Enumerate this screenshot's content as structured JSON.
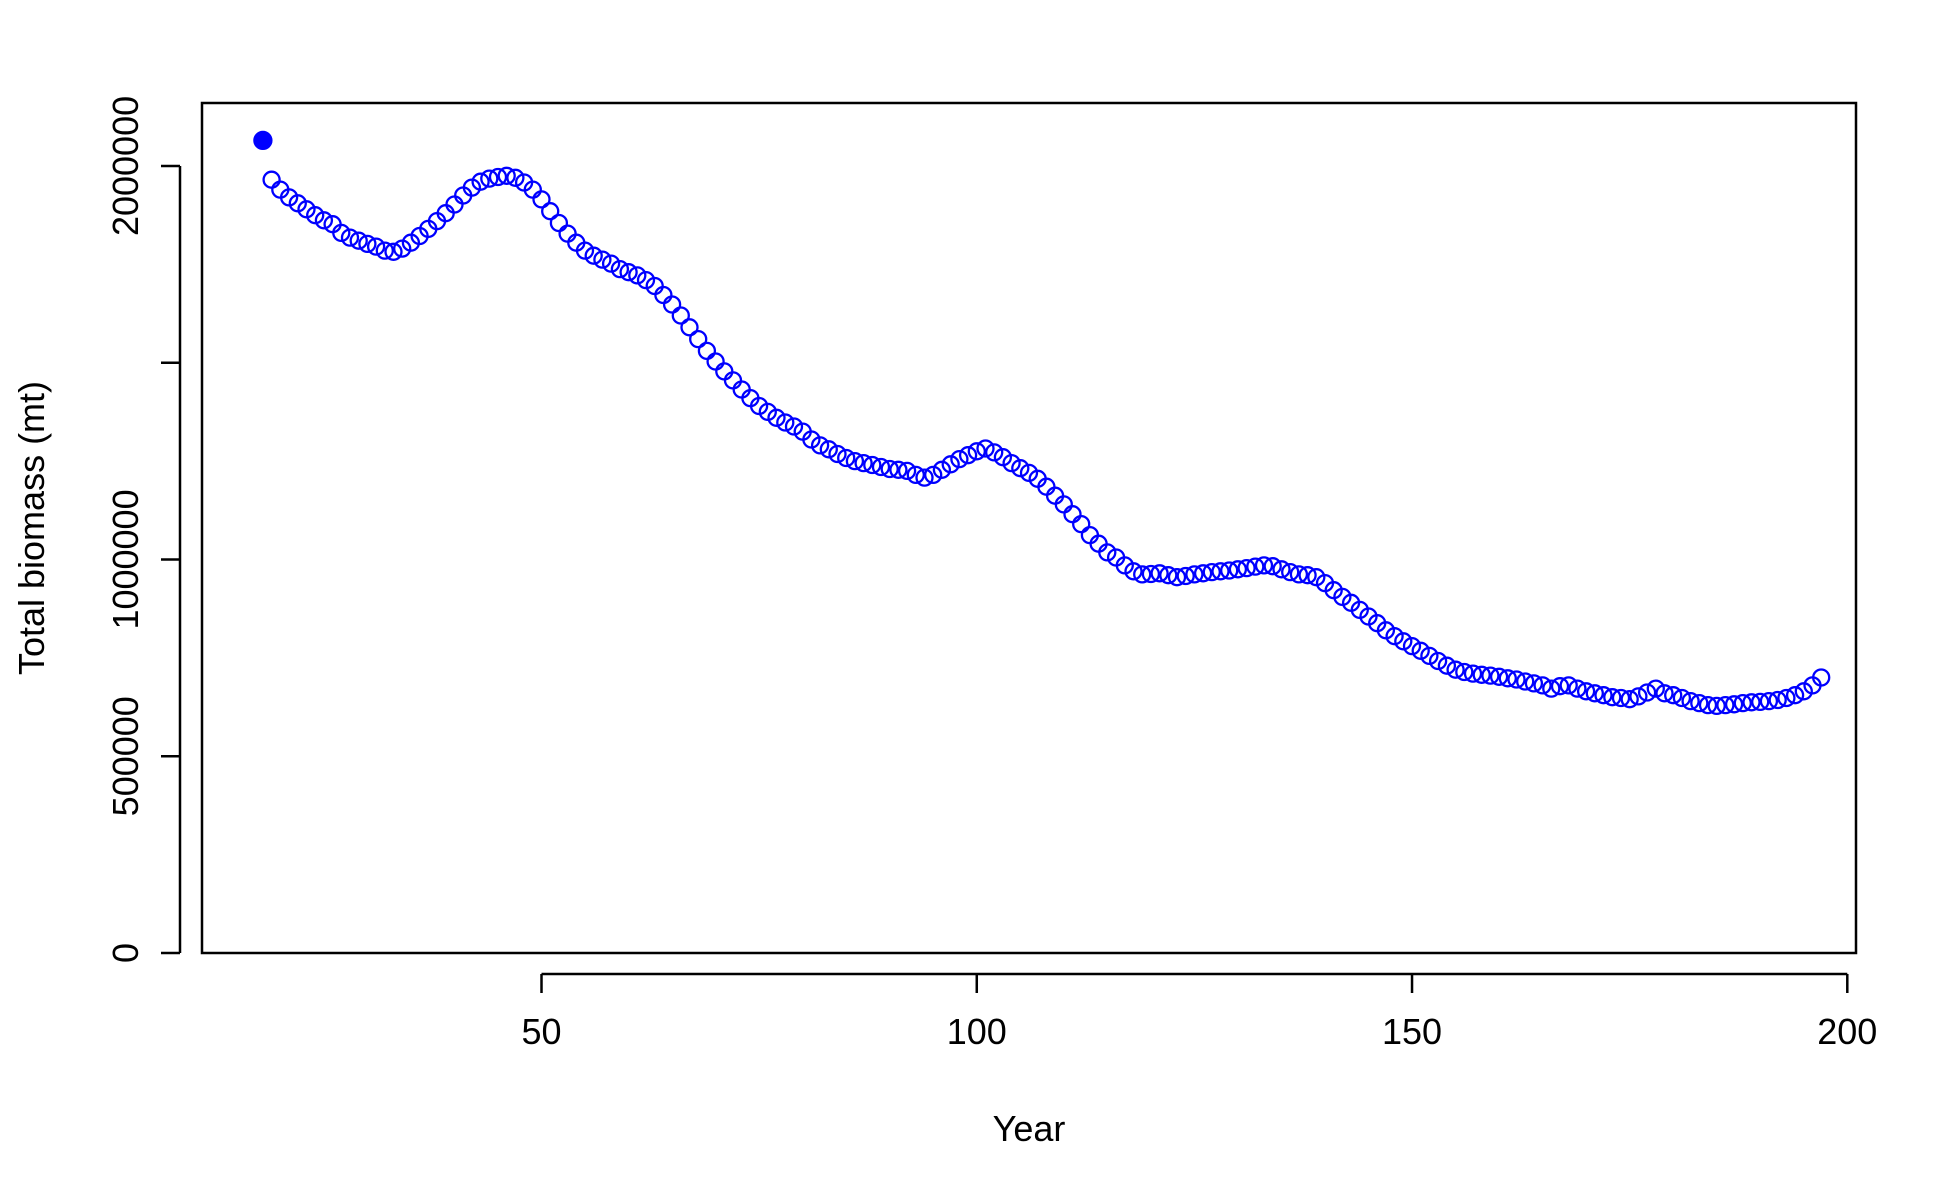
{
  "chart_data": {
    "type": "scatter",
    "title": "",
    "xlabel": "Year",
    "ylabel": "Total biomass (mt)",
    "xlim": [
      11,
      201
    ],
    "ylim": [
      0,
      2160000
    ],
    "xticks": [
      50,
      100,
      150,
      200
    ],
    "yticks": [
      0,
      500000,
      1000000,
      1500000,
      2000000
    ],
    "ytick_labels": [
      "0",
      "500000",
      "1000000",
      "",
      "2000000"
    ],
    "grid": false,
    "legend": "none",
    "series": [
      {
        "marker": "filled-circle",
        "color": "#0000ff",
        "points": [
          [
            18,
            2065000
          ]
        ]
      },
      {
        "marker": "open-circle",
        "color": "#0000ff",
        "points": [
          [
            19,
            1965000
          ],
          [
            20,
            1940000
          ],
          [
            21,
            1920000
          ],
          [
            22,
            1905000
          ],
          [
            23,
            1890000
          ],
          [
            24,
            1875000
          ],
          [
            25,
            1862000
          ],
          [
            26,
            1852000
          ],
          [
            27,
            1830000
          ],
          [
            28,
            1818000
          ],
          [
            29,
            1810000
          ],
          [
            30,
            1802000
          ],
          [
            31,
            1795000
          ],
          [
            32,
            1785000
          ],
          [
            33,
            1782000
          ],
          [
            34,
            1790000
          ],
          [
            35,
            1805000
          ],
          [
            36,
            1822000
          ],
          [
            37,
            1840000
          ],
          [
            38,
            1860000
          ],
          [
            39,
            1880000
          ],
          [
            40,
            1902000
          ],
          [
            41,
            1925000
          ],
          [
            42,
            1945000
          ],
          [
            43,
            1960000
          ],
          [
            44,
            1968000
          ],
          [
            45,
            1972000
          ],
          [
            46,
            1975000
          ],
          [
            47,
            1970000
          ],
          [
            48,
            1958000
          ],
          [
            49,
            1940000
          ],
          [
            50,
            1915000
          ],
          [
            51,
            1885000
          ],
          [
            52,
            1855000
          ],
          [
            53,
            1828000
          ],
          [
            54,
            1805000
          ],
          [
            55,
            1785000
          ],
          [
            56,
            1772000
          ],
          [
            57,
            1762000
          ],
          [
            58,
            1752000
          ],
          [
            59,
            1738000
          ],
          [
            60,
            1730000
          ],
          [
            61,
            1722000
          ],
          [
            62,
            1710000
          ],
          [
            63,
            1695000
          ],
          [
            64,
            1672000
          ],
          [
            65,
            1648000
          ],
          [
            66,
            1620000
          ],
          [
            67,
            1590000
          ],
          [
            68,
            1560000
          ],
          [
            69,
            1530000
          ],
          [
            70,
            1503000
          ],
          [
            71,
            1478000
          ],
          [
            72,
            1455000
          ],
          [
            73,
            1432000
          ],
          [
            74,
            1410000
          ],
          [
            75,
            1390000
          ],
          [
            76,
            1375000
          ],
          [
            77,
            1360000
          ],
          [
            78,
            1348000
          ],
          [
            79,
            1338000
          ],
          [
            80,
            1325000
          ],
          [
            81,
            1305000
          ],
          [
            82,
            1290000
          ],
          [
            83,
            1280000
          ],
          [
            84,
            1268000
          ],
          [
            85,
            1258000
          ],
          [
            86,
            1250000
          ],
          [
            87,
            1245000
          ],
          [
            88,
            1240000
          ],
          [
            89,
            1235000
          ],
          [
            90,
            1230000
          ],
          [
            91,
            1228000
          ],
          [
            92,
            1225000
          ],
          [
            93,
            1215000
          ],
          [
            94,
            1208000
          ],
          [
            95,
            1215000
          ],
          [
            96,
            1228000
          ],
          [
            97,
            1242000
          ],
          [
            98,
            1255000
          ],
          [
            99,
            1265000
          ],
          [
            100,
            1275000
          ],
          [
            101,
            1282000
          ],
          [
            102,
            1272000
          ],
          [
            103,
            1260000
          ],
          [
            104,
            1245000
          ],
          [
            105,
            1232000
          ],
          [
            106,
            1220000
          ],
          [
            107,
            1205000
          ],
          [
            108,
            1185000
          ],
          [
            109,
            1162000
          ],
          [
            110,
            1140000
          ],
          [
            111,
            1115000
          ],
          [
            112,
            1090000
          ],
          [
            113,
            1062000
          ],
          [
            114,
            1040000
          ],
          [
            115,
            1018000
          ],
          [
            116,
            1005000
          ],
          [
            117,
            985000
          ],
          [
            118,
            970000
          ],
          [
            119,
            962000
          ],
          [
            120,
            963000
          ],
          [
            121,
            965000
          ],
          [
            122,
            960000
          ],
          [
            123,
            955000
          ],
          [
            124,
            958000
          ],
          [
            125,
            962000
          ],
          [
            126,
            965000
          ],
          [
            127,
            968000
          ],
          [
            128,
            970000
          ],
          [
            129,
            972000
          ],
          [
            130,
            975000
          ],
          [
            131,
            978000
          ],
          [
            132,
            982000
          ],
          [
            133,
            985000
          ],
          [
            134,
            983000
          ],
          [
            135,
            975000
          ],
          [
            136,
            968000
          ],
          [
            137,
            962000
          ],
          [
            138,
            960000
          ],
          [
            139,
            955000
          ],
          [
            140,
            940000
          ],
          [
            141,
            922000
          ],
          [
            142,
            905000
          ],
          [
            143,
            890000
          ],
          [
            144,
            872000
          ],
          [
            145,
            855000
          ],
          [
            146,
            838000
          ],
          [
            147,
            820000
          ],
          [
            148,
            805000
          ],
          [
            149,
            792000
          ],
          [
            150,
            780000
          ],
          [
            151,
            768000
          ],
          [
            152,
            755000
          ],
          [
            153,
            742000
          ],
          [
            154,
            730000
          ],
          [
            155,
            720000
          ],
          [
            156,
            714000
          ],
          [
            157,
            710000
          ],
          [
            158,
            707000
          ],
          [
            159,
            705000
          ],
          [
            160,
            702000
          ],
          [
            161,
            698000
          ],
          [
            162,
            695000
          ],
          [
            163,
            690000
          ],
          [
            164,
            685000
          ],
          [
            165,
            680000
          ],
          [
            166,
            672000
          ],
          [
            167,
            678000
          ],
          [
            168,
            680000
          ],
          [
            169,
            672000
          ],
          [
            170,
            665000
          ],
          [
            171,
            660000
          ],
          [
            172,
            655000
          ],
          [
            173,
            650000
          ],
          [
            174,
            648000
          ],
          [
            175,
            645000
          ],
          [
            176,
            652000
          ],
          [
            177,
            662000
          ],
          [
            178,
            672000
          ],
          [
            179,
            660000
          ],
          [
            180,
            655000
          ],
          [
            181,
            648000
          ],
          [
            182,
            640000
          ],
          [
            183,
            635000
          ],
          [
            184,
            630000
          ],
          [
            185,
            628000
          ],
          [
            186,
            630000
          ],
          [
            187,
            632000
          ],
          [
            188,
            635000
          ],
          [
            189,
            637000
          ],
          [
            190,
            638000
          ],
          [
            191,
            640000
          ],
          [
            192,
            643000
          ],
          [
            193,
            648000
          ],
          [
            194,
            655000
          ],
          [
            195,
            665000
          ],
          [
            196,
            680000
          ],
          [
            197,
            700000
          ]
        ]
      }
    ]
  }
}
